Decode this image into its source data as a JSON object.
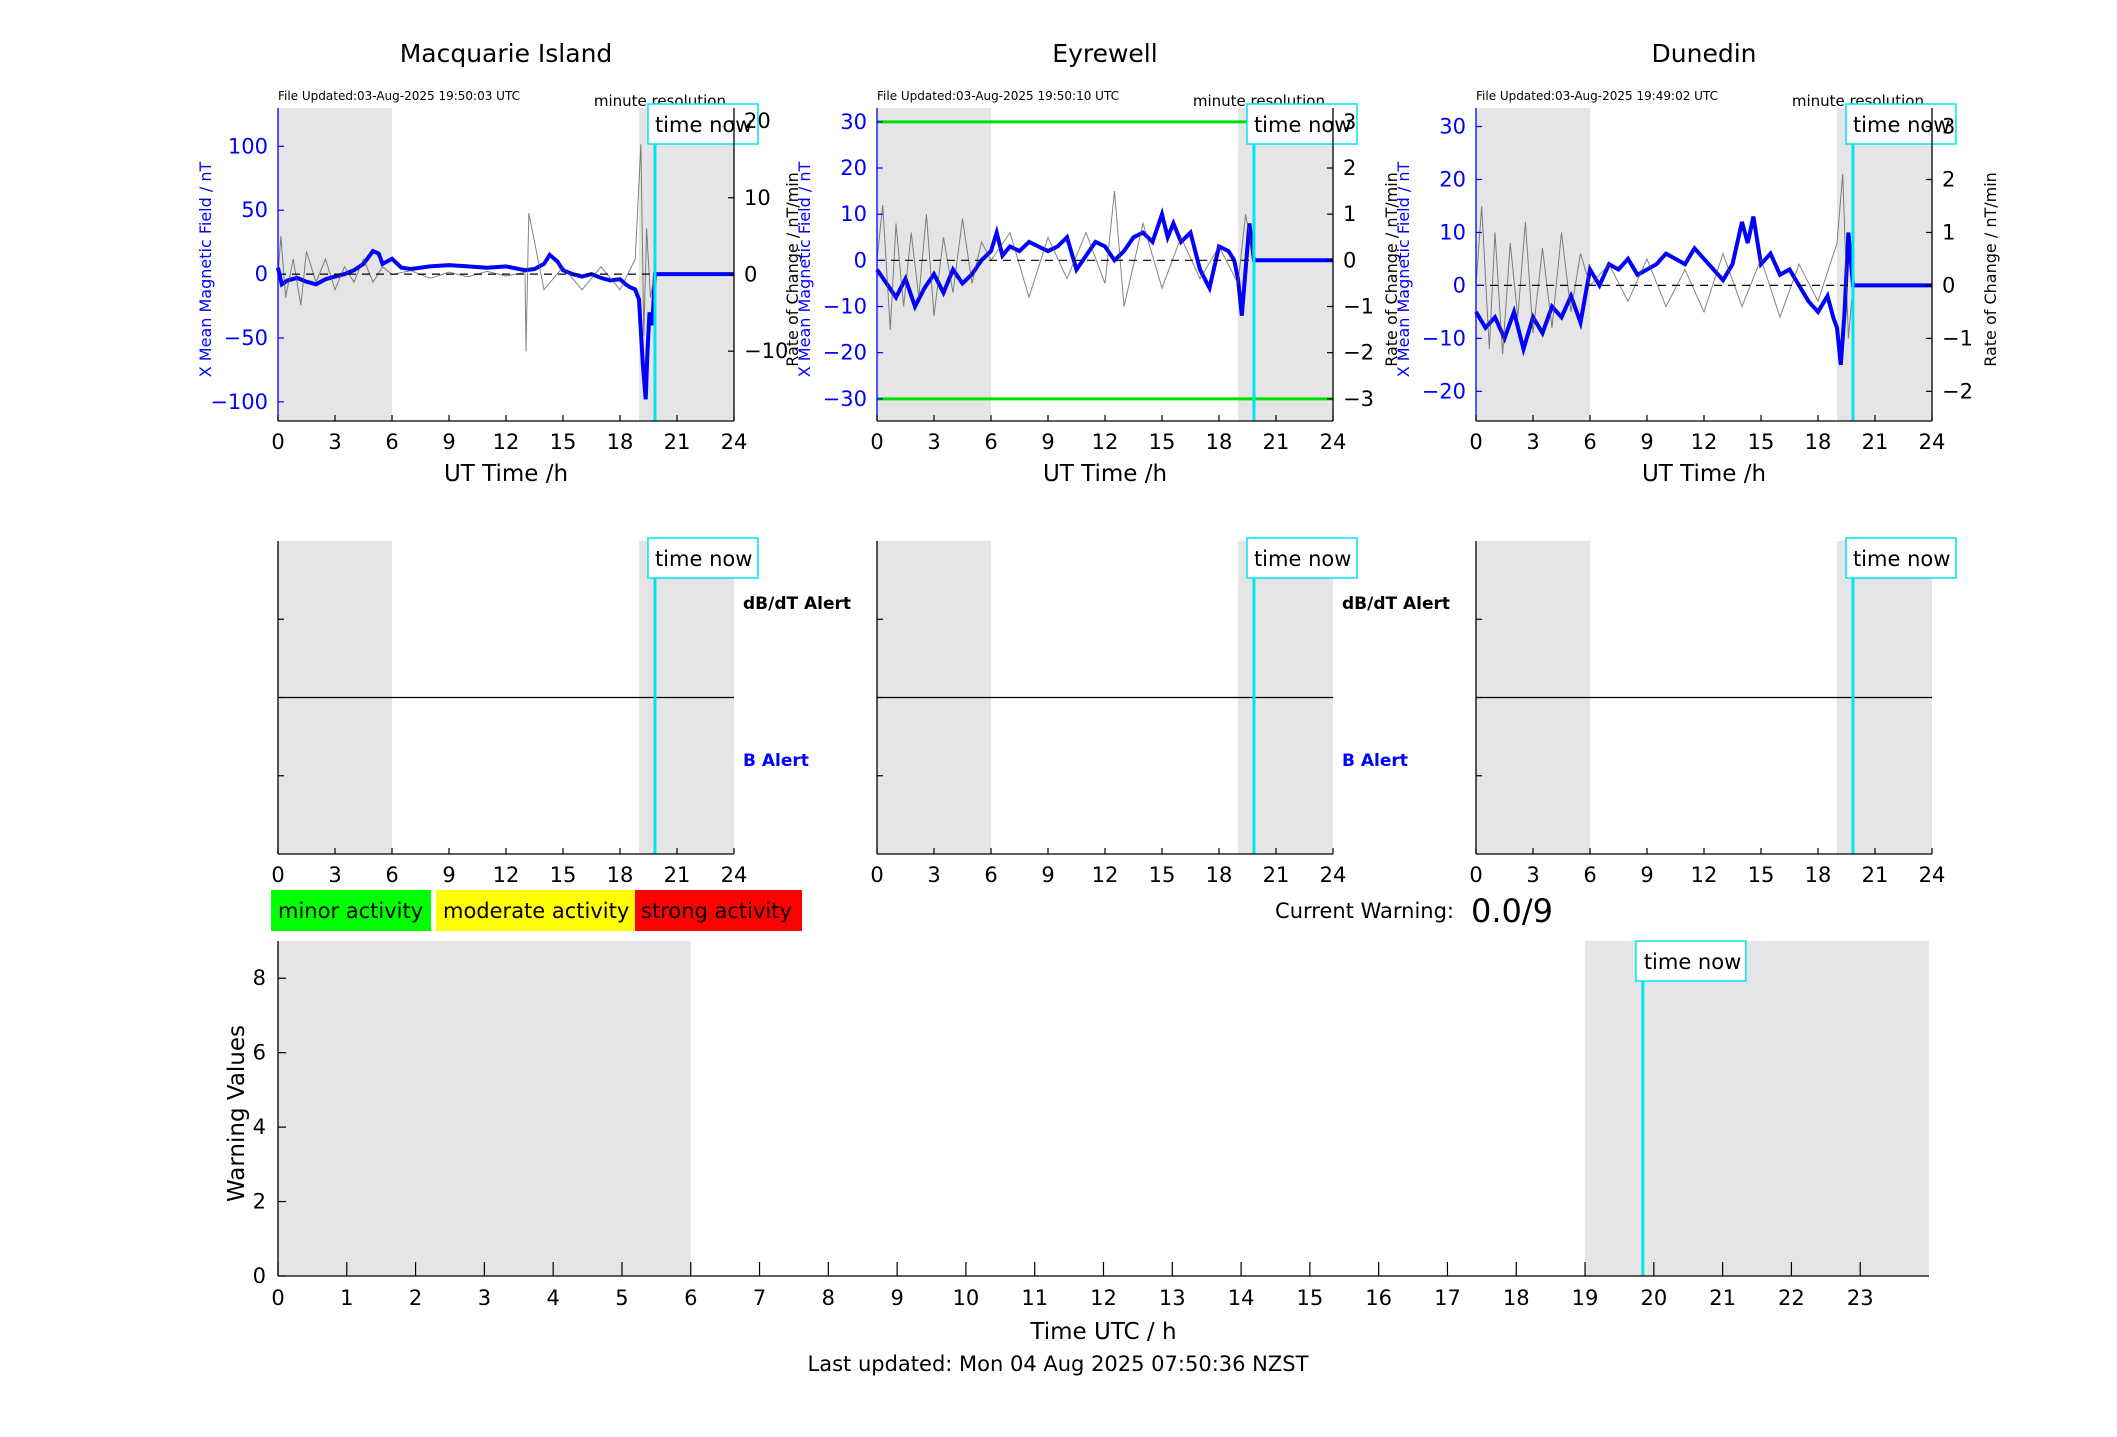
{
  "chart_data": [
    {
      "type": "line",
      "title": "Macquarie Island",
      "file_updated": "File Updated:03-Aug-2025 19:50:03 UTC",
      "resolution_label": "minute resolution",
      "time_now_label": "time now",
      "time_now_h": 19.84,
      "xlabel": "UT Time /h",
      "ylabel": "X Mean Magnetic Field / nT",
      "ylabel_right": "Rate of Change / nT/min",
      "xlim": [
        0,
        24
      ],
      "xticks": [
        0,
        3,
        6,
        9,
        12,
        15,
        18,
        21,
        24
      ],
      "ylim": [
        -115,
        130
      ],
      "yticks": [
        -100,
        -50,
        0,
        50,
        100
      ],
      "ylim_right": [
        -19.1,
        21.7
      ],
      "yticks_right": [
        -10,
        0,
        10,
        20
      ],
      "shaded_ranges_h": [
        [
          0,
          6
        ],
        [
          19,
          24
        ]
      ],
      "threshold_lines": [],
      "series": [
        {
          "name": "",
          "role": "field",
          "color": "#0000ff",
          "x": [
            0,
            0.2,
            0.5,
            1,
            1.5,
            2,
            2.5,
            3,
            3.5,
            4,
            4.5,
            5,
            5.3,
            5.5,
            6,
            6.5,
            7,
            8,
            9,
            10,
            11,
            12,
            13,
            13.5,
            14,
            14.3,
            14.7,
            15,
            15.5,
            16,
            16.5,
            17,
            17.5,
            18,
            18.3,
            18.5,
            18.8,
            19,
            19.2,
            19.35,
            19.45,
            19.55,
            19.7,
            19.84,
            20,
            24
          ],
          "y": [
            5,
            -8,
            -5,
            -3,
            -6,
            -8,
            -4,
            -2,
            0,
            3,
            8,
            18,
            16,
            8,
            12,
            5,
            4,
            6,
            7,
            6,
            5,
            6,
            3,
            4,
            8,
            15,
            10,
            3,
            0,
            -2,
            0,
            -3,
            -5,
            -4,
            -8,
            -10,
            -12,
            -20,
            -70,
            -98,
            -60,
            -30,
            -40,
            0,
            0,
            0
          ]
        },
        {
          "name": "",
          "role": "rate_of_change",
          "color": "#505050",
          "x": [
            0,
            0.15,
            0.4,
            0.8,
            1.2,
            1.5,
            2,
            2.5,
            3,
            3.5,
            4,
            4.5,
            5,
            5.5,
            6,
            7,
            8,
            9,
            10,
            11,
            12,
            13,
            13.05,
            13.2,
            14,
            15,
            16,
            17,
            18,
            18.8,
            19.1,
            19.25,
            19.4,
            19.6,
            19.84
          ],
          "y": [
            0,
            5,
            -3,
            2,
            -4,
            3,
            -1,
            2,
            -2,
            1,
            -1,
            2,
            -1,
            1,
            0,
            0.5,
            -0.5,
            0.3,
            -0.3,
            0.4,
            -0.2,
            0.3,
            -10,
            8,
            -2,
            1,
            -2,
            1,
            -2,
            2,
            17,
            -8,
            6,
            -3,
            0
          ]
        },
        {
          "name": "",
          "role": "baseline",
          "color": "#000000",
          "dashed": true,
          "x": [
            0,
            19.84
          ],
          "y": [
            0,
            0
          ]
        }
      ]
    },
    {
      "type": "line",
      "title": "Eyrewell",
      "file_updated": "File Updated:03-Aug-2025 19:50:10 UTC",
      "resolution_label": "minute resolution",
      "time_now_label": "time now",
      "time_now_h": 19.84,
      "xlabel": "UT Time /h",
      "ylabel": "X Mean Magnetic Field / nT",
      "ylabel_right": "Rate of Change / nT/min",
      "xlim": [
        0,
        24
      ],
      "xticks": [
        0,
        3,
        6,
        9,
        12,
        15,
        18,
        21,
        24
      ],
      "ylim": [
        -34.8,
        33
      ],
      "yticks": [
        -30,
        -20,
        -10,
        0,
        10,
        20,
        30
      ],
      "ylim_right": [
        -3.48,
        3.3
      ],
      "yticks_right": [
        -3,
        -2,
        -1,
        0,
        1,
        2,
        3
      ],
      "shaded_ranges_h": [
        [
          0,
          6
        ],
        [
          19,
          24
        ]
      ],
      "threshold_lines": [
        30,
        -30
      ],
      "threshold_color": "#00e000",
      "series": [
        {
          "name": "",
          "role": "field",
          "color": "#0000ff",
          "x": [
            0,
            0.5,
            1,
            1.5,
            2,
            2.5,
            3,
            3.5,
            4,
            4.5,
            5,
            5.5,
            6,
            6.3,
            6.6,
            7,
            7.5,
            8,
            8.5,
            9,
            9.5,
            10,
            10.5,
            11,
            11.5,
            12,
            12.5,
            13,
            13.5,
            14,
            14.5,
            15,
            15.3,
            15.6,
            16,
            16.5,
            17,
            17.5,
            18,
            18.5,
            18.8,
            19,
            19.2,
            19.4,
            19.6,
            19.84,
            20,
            24
          ],
          "y": [
            -2,
            -5,
            -8,
            -4,
            -10,
            -6,
            -3,
            -7,
            -2,
            -5,
            -3,
            0,
            2,
            6,
            1,
            3,
            2,
            4,
            3,
            2,
            3,
            5,
            -2,
            1,
            4,
            3,
            0,
            2,
            5,
            6,
            4,
            10,
            5,
            8,
            4,
            6,
            -2,
            -6,
            3,
            2,
            0,
            -4,
            -12,
            -2,
            8,
            0,
            0,
            0
          ]
        },
        {
          "name": "",
          "role": "rate_of_change",
          "color": "#505050",
          "x": [
            0,
            0.3,
            0.7,
            1,
            1.4,
            1.8,
            2.2,
            2.6,
            3,
            3.5,
            4,
            4.5,
            5,
            5.5,
            6,
            7,
            8,
            9,
            10,
            11,
            12,
            12.5,
            13,
            14,
            15,
            16,
            17,
            18,
            19,
            19.4,
            19.84
          ],
          "y": [
            0,
            1.2,
            -1.5,
            0.8,
            -1,
            0.6,
            -0.8,
            1,
            -1.2,
            0.5,
            -0.7,
            0.9,
            -0.5,
            0.4,
            0,
            0.6,
            -0.8,
            0.5,
            -0.4,
            0.6,
            -0.5,
            1.5,
            -1,
            0.8,
            -0.6,
            0.5,
            -0.4,
            0.3,
            -0.5,
            1,
            0
          ]
        },
        {
          "name": "",
          "role": "baseline",
          "color": "#000000",
          "dashed": true,
          "x": [
            0,
            19.84
          ],
          "y": [
            0,
            0
          ]
        }
      ]
    },
    {
      "type": "line",
      "title": "Dunedin",
      "file_updated": "File Updated:03-Aug-2025 19:49:02 UTC",
      "resolution_label": "minute resolution",
      "time_now_label": "time now",
      "time_now_h": 19.84,
      "xlabel": "UT Time /h",
      "ylabel": "X Mean Magnetic Field / nT",
      "ylabel_right": "Rate of Change / nT/min",
      "xlim": [
        0,
        24
      ],
      "xticks": [
        0,
        3,
        6,
        9,
        12,
        15,
        18,
        21,
        24
      ],
      "ylim": [
        -25.6,
        33.5
      ],
      "yticks": [
        -20,
        -10,
        0,
        10,
        20,
        30
      ],
      "ylim_right": [
        -2.56,
        3.35
      ],
      "yticks_right": [
        -2,
        -1,
        0,
        1,
        2,
        3
      ],
      "shaded_ranges_h": [
        [
          0,
          6
        ],
        [
          19,
          24
        ]
      ],
      "threshold_lines": [],
      "series": [
        {
          "name": "",
          "role": "field",
          "color": "#0000ff",
          "x": [
            0,
            0.5,
            1,
            1.5,
            2,
            2.5,
            3,
            3.5,
            4,
            4.5,
            5,
            5.5,
            6,
            6.5,
            7,
            7.5,
            8,
            8.5,
            9,
            9.5,
            10,
            10.5,
            11,
            11.5,
            12,
            12.5,
            13,
            13.5,
            14,
            14.3,
            14.6,
            15,
            15.5,
            16,
            16.5,
            17,
            17.5,
            18,
            18.5,
            18.8,
            19,
            19.2,
            19.4,
            19.6,
            19.84,
            20,
            24
          ],
          "y": [
            -5,
            -8,
            -6,
            -10,
            -5,
            -12,
            -6,
            -9,
            -4,
            -6,
            -2,
            -7,
            3,
            0,
            4,
            3,
            5,
            2,
            3,
            4,
            6,
            5,
            4,
            7,
            5,
            3,
            1,
            4,
            12,
            8,
            13,
            4,
            6,
            2,
            3,
            0,
            -3,
            -5,
            -2,
            -6,
            -8,
            -15,
            -5,
            10,
            0,
            0,
            0
          ]
        },
        {
          "name": "",
          "role": "rate_of_change",
          "color": "#505050",
          "x": [
            0,
            0.3,
            0.7,
            1,
            1.4,
            1.8,
            2.2,
            2.6,
            3,
            3.5,
            4,
            4.5,
            5,
            5.5,
            6,
            7,
            8,
            9,
            10,
            11,
            12,
            13,
            14,
            15,
            16,
            17,
            18,
            19,
            19.3,
            19.6,
            19.84
          ],
          "y": [
            0,
            1.5,
            -1.2,
            1,
            -1.3,
            0.8,
            -0.6,
            1.2,
            -0.9,
            0.7,
            -0.8,
            1,
            -0.5,
            0.6,
            0,
            0.4,
            -0.3,
            0.5,
            -0.4,
            0.3,
            -0.5,
            0.6,
            -0.4,
            0.5,
            -0.6,
            0.4,
            -0.3,
            0.8,
            2.1,
            -1,
            0
          ]
        },
        {
          "name": "",
          "role": "baseline",
          "color": "#000000",
          "dashed": true,
          "x": [
            0,
            19.84
          ],
          "y": [
            0,
            0
          ]
        }
      ]
    },
    {
      "type": "line",
      "title": "",
      "xlabel": "",
      "time_now_label": "time now",
      "time_now_h": 19.84,
      "dbdt_label": "dB/dT Alert",
      "b_label": "B Alert",
      "xlim": [
        0,
        24
      ],
      "xticks": [
        0,
        3,
        6,
        9,
        12,
        15,
        18,
        21,
        24
      ],
      "shaded_ranges_h": [
        [
          0,
          6
        ],
        [
          19,
          24
        ]
      ],
      "series": []
    },
    {
      "type": "line",
      "title": "",
      "xlabel": "",
      "time_now_label": "time now",
      "time_now_h": 19.84,
      "dbdt_label": "dB/dT Alert",
      "b_label": "B Alert",
      "xlim": [
        0,
        24
      ],
      "xticks": [
        0,
        3,
        6,
        9,
        12,
        15,
        18,
        21,
        24
      ],
      "shaded_ranges_h": [
        [
          0,
          6
        ],
        [
          19,
          24
        ]
      ],
      "series": []
    },
    {
      "type": "line",
      "title": "",
      "xlabel": "",
      "time_now_label": "time now",
      "time_now_h": 19.84,
      "dbdt_label": "",
      "b_label": "",
      "xlim": [
        0,
        24
      ],
      "xticks": [
        0,
        3,
        6,
        9,
        12,
        15,
        18,
        21,
        24
      ],
      "shaded_ranges_h": [
        [
          0,
          6
        ],
        [
          19,
          24
        ]
      ],
      "series": []
    },
    {
      "type": "bar",
      "title": "",
      "xlabel": "Time UTC / h",
      "ylabel": "Warning Values",
      "xlim": [
        0,
        24
      ],
      "xticks": [
        0,
        1,
        2,
        3,
        4,
        5,
        6,
        7,
        8,
        9,
        10,
        11,
        12,
        13,
        14,
        15,
        16,
        17,
        18,
        19,
        20,
        21,
        22,
        23
      ],
      "ylim": [
        0,
        9
      ],
      "yticks": [
        0,
        2,
        4,
        6,
        8
      ],
      "shaded_ranges_h": [
        [
          0,
          6
        ],
        [
          19,
          24
        ]
      ],
      "time_now_label": "time now",
      "time_now_h": 19.84,
      "categories": [],
      "values": []
    }
  ],
  "legend": {
    "items": [
      {
        "label": "minor activity",
        "color": "#00ff00"
      },
      {
        "label": "moderate activity",
        "color": "#ffff00"
      },
      {
        "label": "strong activity",
        "color": "#ff0000"
      }
    ]
  },
  "warning": {
    "label": "Current Warning:",
    "value": "0.0/9"
  },
  "footer": {
    "last_updated": "Last updated: Mon 04 Aug 2025 07:50:36 NZST"
  }
}
